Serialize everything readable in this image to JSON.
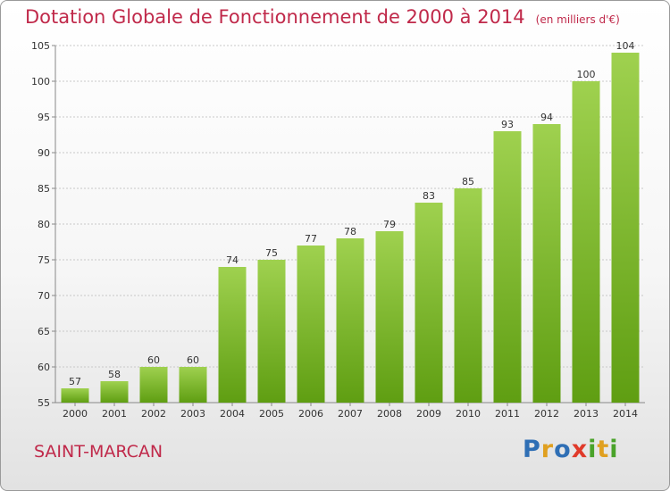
{
  "header": {
    "title": "Dotation Globale de Fonctionnement de 2000 à 2014",
    "subtitle": "(en milliers d'€)"
  },
  "footer": {
    "commune": "SAINT-MARCAN",
    "logo": [
      "P",
      "r",
      "o",
      "x",
      "i",
      "t",
      "i"
    ]
  },
  "colors": {
    "title": "#c0294a",
    "bar_light": "#9fd14f",
    "bar_dark": "#5f9e12",
    "logo": [
      "#2f6fb5",
      "#e0a020",
      "#2f6fb5",
      "#e03a2a",
      "#4aa32a",
      "#e0a020",
      "#4aa32a"
    ]
  },
  "chart_data": {
    "type": "bar",
    "title": "Dotation Globale de Fonctionnement de 2000 à 2014",
    "subtitle": "(en milliers d'€)",
    "xlabel": "",
    "ylabel": "",
    "categories": [
      "2000",
      "2001",
      "2002",
      "2003",
      "2004",
      "2005",
      "2006",
      "2007",
      "2008",
      "2009",
      "2010",
      "2011",
      "2012",
      "2013",
      "2014"
    ],
    "values": [
      57,
      58,
      60,
      60,
      74,
      75,
      77,
      78,
      79,
      83,
      85,
      93,
      94,
      100,
      104
    ],
    "ylim": [
      55,
      105
    ],
    "yticks": [
      55,
      60,
      65,
      70,
      75,
      80,
      85,
      90,
      95,
      100,
      105
    ],
    "grid": true,
    "data_labels": true
  }
}
